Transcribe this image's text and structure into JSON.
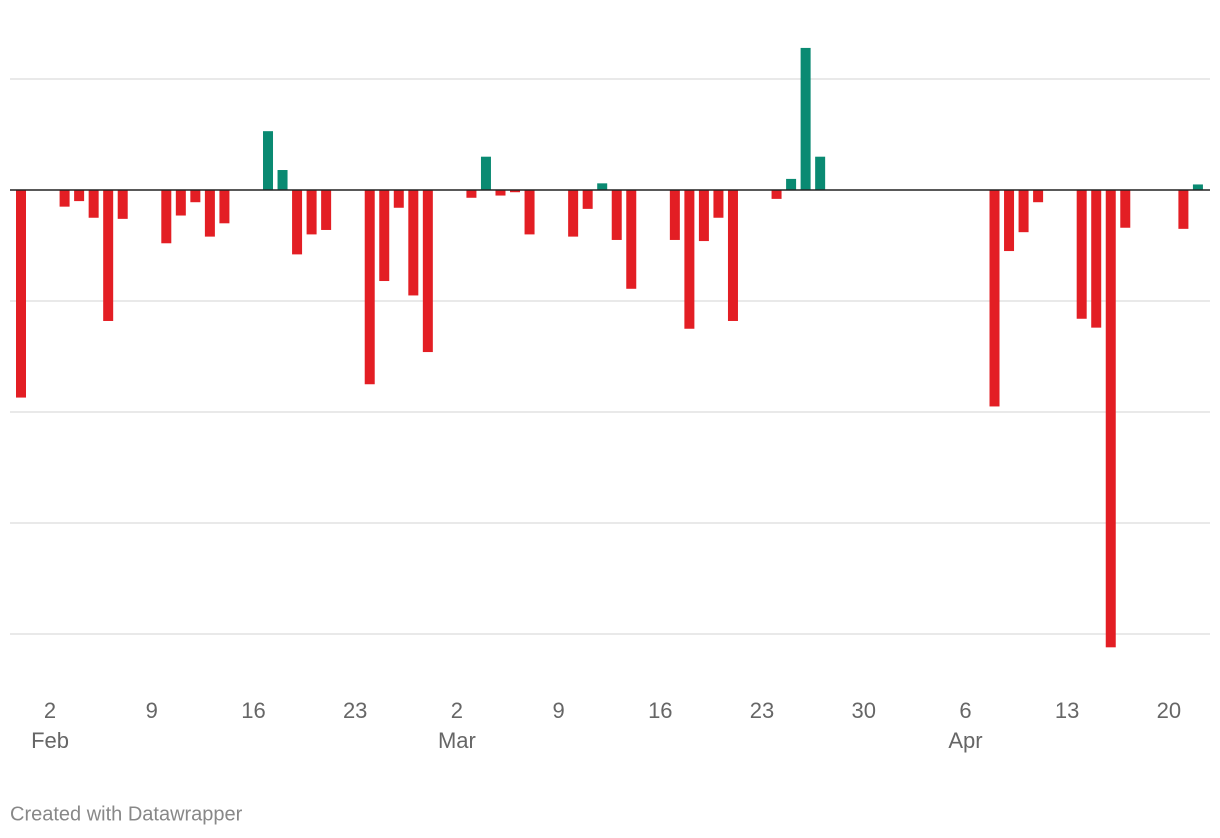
{
  "chart_data": {
    "type": "bar",
    "categories": [
      null,
      null,
      "2",
      null,
      null,
      null,
      null,
      null,
      null,
      "9",
      null,
      null,
      null,
      null,
      null,
      null,
      "16",
      null,
      null,
      null,
      null,
      null,
      null,
      "23",
      null,
      null,
      null,
      null,
      null,
      null,
      "2",
      null,
      null,
      null,
      null,
      null,
      null,
      "9",
      null,
      null,
      null,
      null,
      null,
      null,
      "16",
      null,
      null,
      null,
      null,
      null,
      null,
      "23",
      null,
      null,
      null,
      null,
      null,
      null,
      "30",
      null,
      null,
      null,
      null,
      null,
      null,
      "6",
      null,
      null,
      null,
      null,
      null,
      null,
      "13",
      null,
      null,
      null,
      null,
      null,
      null,
      "20",
      null,
      null
    ],
    "category_months": [
      null,
      null,
      "Feb",
      null,
      null,
      null,
      null,
      null,
      null,
      null,
      null,
      null,
      null,
      null,
      null,
      null,
      null,
      null,
      null,
      null,
      null,
      null,
      null,
      null,
      null,
      null,
      null,
      null,
      null,
      null,
      "Mar",
      null,
      null,
      null,
      null,
      null,
      null,
      null,
      null,
      null,
      null,
      null,
      null,
      null,
      null,
      null,
      null,
      null,
      null,
      null,
      null,
      null,
      null,
      null,
      null,
      null,
      null,
      null,
      null,
      null,
      null,
      null,
      null,
      null,
      null,
      "Apr",
      null,
      null,
      null,
      null,
      null,
      null,
      null,
      null,
      null,
      null,
      null,
      null,
      null,
      null,
      null,
      null
    ],
    "values": [
      -1.87,
      null,
      null,
      -0.15,
      -0.1,
      -0.25,
      -1.18,
      -0.26,
      null,
      null,
      -0.48,
      -0.23,
      -0.11,
      -0.42,
      -0.3,
      null,
      null,
      0.53,
      0.18,
      -0.58,
      -0.4,
      -0.36,
      null,
      null,
      -1.75,
      -0.82,
      -0.16,
      -0.95,
      -1.46,
      null,
      null,
      -0.07,
      0.3,
      -0.05,
      -0.02,
      -0.4,
      null,
      null,
      -0.42,
      -0.17,
      0.06,
      -0.45,
      -0.89,
      null,
      null,
      -0.45,
      -1.25,
      -0.46,
      -0.25,
      -1.18,
      null,
      null,
      -0.08,
      0.1,
      1.28,
      0.3,
      null,
      null,
      null,
      null,
      null,
      null,
      null,
      null,
      null,
      null,
      null,
      -1.95,
      -0.55,
      -0.38,
      -0.11,
      null,
      null,
      -1.16,
      -1.24,
      -4.12,
      -0.34,
      null,
      null,
      null,
      -0.35,
      0.05
    ],
    "positive_color": "#0a8a72",
    "negative_color": "#e31e24",
    "ylim": [
      -4.3,
      1.4
    ],
    "yticks": [
      -4,
      -3,
      -2,
      -1,
      0,
      1
    ],
    "grid": true,
    "credit": "Created with Datawrapper"
  }
}
